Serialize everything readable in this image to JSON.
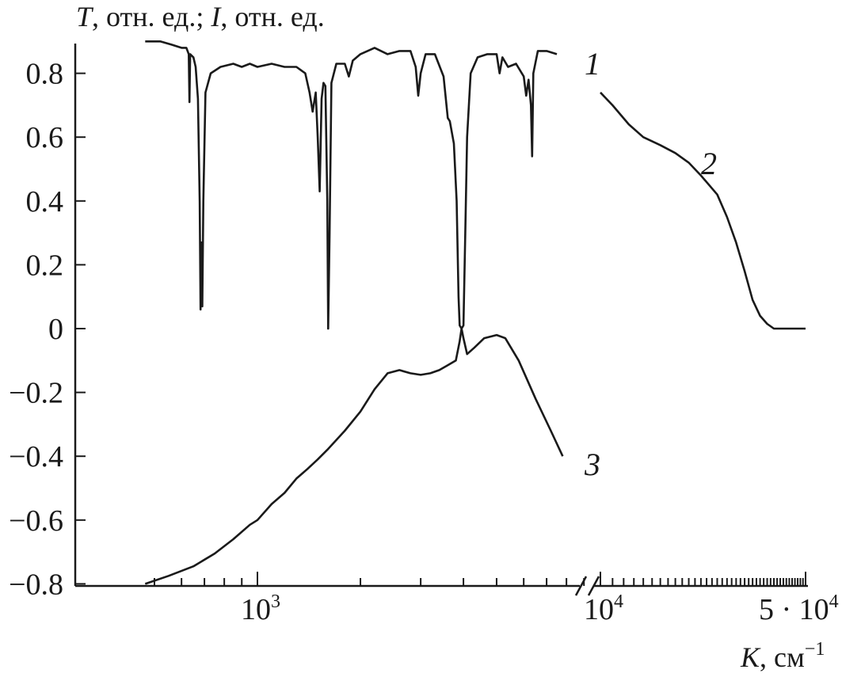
{
  "chart_data": {
    "type": "line",
    "ylabel_parts": [
      "T",
      ", отн. ед.; ",
      "I",
      ", отн. ед."
    ],
    "xlabel_parts": [
      "K",
      ", см",
      "−1"
    ],
    "ylim": [
      -0.8,
      0.9
    ],
    "y_ticks": [
      0.8,
      0.6,
      0.4,
      0.2,
      0,
      -0.2,
      -0.4,
      -0.6,
      -0.8
    ],
    "y_tick_labels": [
      "0.8",
      "0.6",
      "0.4",
      "0.2",
      "0",
      "−0.2",
      "−0.4",
      "−0.6",
      "−0.8"
    ],
    "x_scale": "log, broken axis",
    "x_segments": [
      {
        "from": 470,
        "to": 9000
      },
      {
        "from": 9000,
        "to": 50000
      }
    ],
    "x_tick_labels": [
      {
        "x": 1000,
        "base": "10",
        "exp": "3"
      },
      {
        "x": 10000,
        "base": "10",
        "exp": "4"
      },
      {
        "x": 50000,
        "base": "5 · 10",
        "exp": "4"
      }
    ],
    "series": [
      {
        "name": "1",
        "points": [
          [
            470,
            0.9
          ],
          [
            520,
            0.9
          ],
          [
            560,
            0.89
          ],
          [
            600,
            0.88
          ],
          [
            620,
            0.88
          ],
          [
            630,
            0.86
          ],
          [
            633,
            0.71
          ],
          [
            636,
            0.86
          ],
          [
            650,
            0.85
          ],
          [
            660,
            0.82
          ],
          [
            670,
            0.72
          ],
          [
            678,
            0.4
          ],
          [
            682,
            0.06
          ],
          [
            686,
            0.27
          ],
          [
            690,
            0.07
          ],
          [
            695,
            0.4
          ],
          [
            705,
            0.74
          ],
          [
            730,
            0.8
          ],
          [
            780,
            0.82
          ],
          [
            850,
            0.83
          ],
          [
            900,
            0.82
          ],
          [
            950,
            0.83
          ],
          [
            1000,
            0.82
          ],
          [
            1100,
            0.83
          ],
          [
            1200,
            0.82
          ],
          [
            1300,
            0.82
          ],
          [
            1380,
            0.8
          ],
          [
            1420,
            0.74
          ],
          [
            1450,
            0.68
          ],
          [
            1480,
            0.74
          ],
          [
            1500,
            0.6
          ],
          [
            1520,
            0.43
          ],
          [
            1540,
            0.72
          ],
          [
            1560,
            0.77
          ],
          [
            1580,
            0.76
          ],
          [
            1600,
            0.4
          ],
          [
            1610,
            0.0
          ],
          [
            1625,
            0.3
          ],
          [
            1645,
            0.77
          ],
          [
            1700,
            0.83
          ],
          [
            1800,
            0.83
          ],
          [
            1850,
            0.79
          ],
          [
            1900,
            0.84
          ],
          [
            2000,
            0.86
          ],
          [
            2200,
            0.88
          ],
          [
            2400,
            0.86
          ],
          [
            2600,
            0.87
          ],
          [
            2800,
            0.87
          ],
          [
            2900,
            0.82
          ],
          [
            2950,
            0.73
          ],
          [
            3000,
            0.8
          ],
          [
            3100,
            0.86
          ],
          [
            3300,
            0.86
          ],
          [
            3500,
            0.79
          ],
          [
            3600,
            0.66
          ],
          [
            3650,
            0.65
          ],
          [
            3750,
            0.58
          ],
          [
            3820,
            0.4
          ],
          [
            3870,
            0.1
          ],
          [
            3900,
            0.01
          ],
          [
            3950,
            0.0
          ],
          [
            4000,
            0.01
          ],
          [
            4050,
            0.3
          ],
          [
            4100,
            0.6
          ],
          [
            4200,
            0.8
          ],
          [
            4400,
            0.85
          ],
          [
            4700,
            0.86
          ],
          [
            5000,
            0.86
          ],
          [
            5100,
            0.8
          ],
          [
            5200,
            0.85
          ],
          [
            5400,
            0.82
          ],
          [
            5700,
            0.83
          ],
          [
            6000,
            0.79
          ],
          [
            6100,
            0.73
          ],
          [
            6200,
            0.78
          ],
          [
            6300,
            0.7
          ],
          [
            6350,
            0.54
          ],
          [
            6400,
            0.8
          ],
          [
            6600,
            0.87
          ],
          [
            7000,
            0.87
          ],
          [
            7500,
            0.86
          ]
        ]
      },
      {
        "name": "2",
        "points": [
          [
            10000,
            0.74
          ],
          [
            11000,
            0.7
          ],
          [
            12500,
            0.64
          ],
          [
            14000,
            0.6
          ],
          [
            16000,
            0.575
          ],
          [
            18000,
            0.55
          ],
          [
            20000,
            0.52
          ],
          [
            22000,
            0.48
          ],
          [
            25000,
            0.42
          ],
          [
            27000,
            0.35
          ],
          [
            29000,
            0.27
          ],
          [
            31000,
            0.18
          ],
          [
            33000,
            0.09
          ],
          [
            35000,
            0.04
          ],
          [
            37000,
            0.015
          ],
          [
            39000,
            0.0
          ],
          [
            42000,
            0.0
          ],
          [
            46000,
            0.0
          ],
          [
            50000,
            0.0
          ]
        ]
      },
      {
        "name": "3",
        "points": [
          [
            470,
            -0.8
          ],
          [
            550,
            -0.775
          ],
          [
            650,
            -0.745
          ],
          [
            750,
            -0.705
          ],
          [
            850,
            -0.66
          ],
          [
            950,
            -0.615
          ],
          [
            1000,
            -0.6
          ],
          [
            1100,
            -0.55
          ],
          [
            1200,
            -0.515
          ],
          [
            1300,
            -0.47
          ],
          [
            1400,
            -0.44
          ],
          [
            1500,
            -0.41
          ],
          [
            1600,
            -0.38
          ],
          [
            1800,
            -0.32
          ],
          [
            2000,
            -0.26
          ],
          [
            2200,
            -0.19
          ],
          [
            2400,
            -0.14
          ],
          [
            2600,
            -0.13
          ],
          [
            2800,
            -0.14
          ],
          [
            3000,
            -0.145
          ],
          [
            3200,
            -0.14
          ],
          [
            3400,
            -0.13
          ],
          [
            3600,
            -0.115
          ],
          [
            3800,
            -0.1
          ],
          [
            3900,
            -0.04
          ],
          [
            3950,
            0.0
          ],
          [
            4000,
            -0.03
          ],
          [
            4100,
            -0.08
          ],
          [
            4300,
            -0.06
          ],
          [
            4600,
            -0.03
          ],
          [
            5000,
            -0.02
          ],
          [
            5300,
            -0.03
          ],
          [
            5800,
            -0.1
          ],
          [
            6500,
            -0.22
          ],
          [
            7200,
            -0.32
          ],
          [
            7800,
            -0.4
          ]
        ]
      }
    ],
    "curve_labels": [
      "1",
      "2",
      "3"
    ]
  }
}
